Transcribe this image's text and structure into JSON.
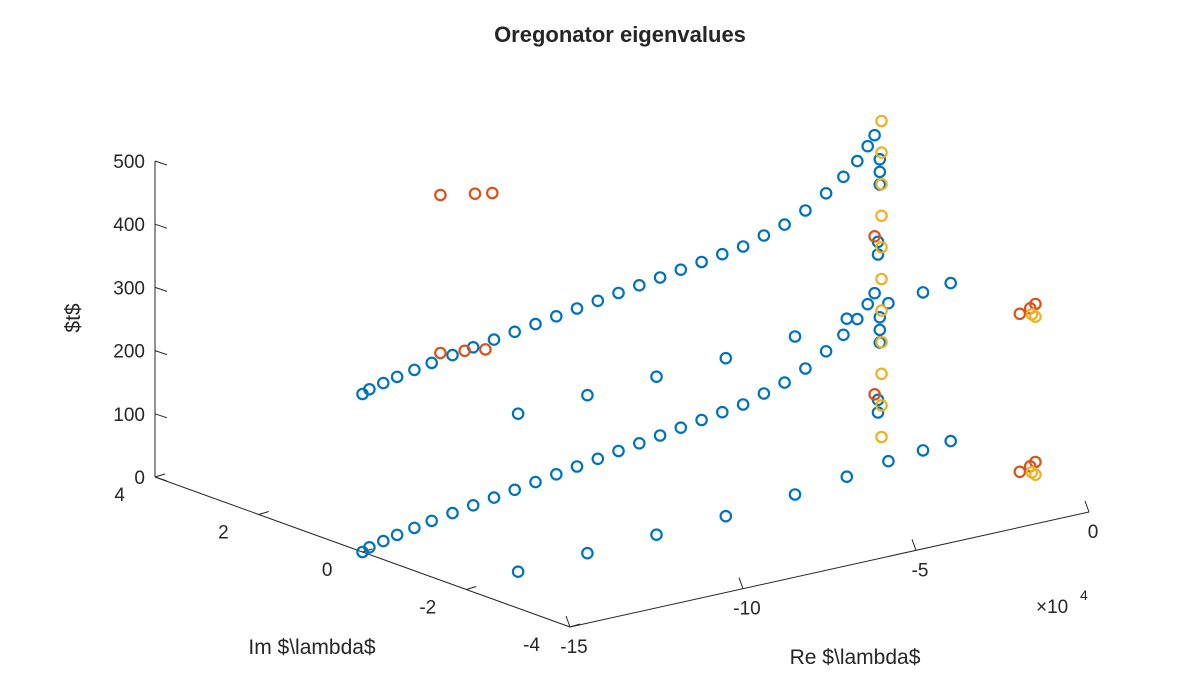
{
  "chart_data": {
    "type": "scatter",
    "title": "Oregonator eigenvalues",
    "xlabel": "Re $\\lambda$",
    "ylabel": "Im $\\lambda$",
    "zlabel": "$t$",
    "xlim": [
      -150000,
      0
    ],
    "ylim": [
      -4,
      4
    ],
    "zlim": [
      0,
      500
    ],
    "x_ticks": [
      "-15",
      "-10",
      "-5",
      "0"
    ],
    "x_tick_values": [
      -150000,
      -100000,
      -50000,
      0
    ],
    "x_exponent_label": "×10",
    "x_exponent_power": "4",
    "y_ticks": [
      "4",
      "2",
      "0",
      "-2",
      "-4"
    ],
    "y_tick_values": [
      4,
      2,
      0,
      -2,
      -4
    ],
    "z_ticks": [
      "0",
      "100",
      "200",
      "300",
      "400",
      "500"
    ],
    "z_tick_values": [
      0,
      100,
      200,
      300,
      400,
      500
    ],
    "grid": false,
    "colors": {
      "series1": "#0072BD",
      "series2": "#D95319",
      "series3": "#EDB120"
    },
    "series": [
      {
        "color": "#0072BD",
        "points": [
          [
            -150000,
            0,
            0
          ],
          [
            -148000,
            0,
            5
          ],
          [
            -144000,
            0,
            10
          ],
          [
            -140000,
            0,
            15
          ],
          [
            -135000,
            0,
            20
          ],
          [
            -130000,
            0,
            25
          ],
          [
            -124000,
            0,
            30
          ],
          [
            -118000,
            0,
            35
          ],
          [
            -112000,
            0,
            40
          ],
          [
            -106000,
            0,
            45
          ],
          [
            -100000,
            0,
            50
          ],
          [
            -94000,
            0,
            55
          ],
          [
            -88000,
            0,
            60
          ],
          [
            -82000,
            0,
            65
          ],
          [
            -76000,
            0,
            70
          ],
          [
            -70000,
            0,
            75
          ],
          [
            -64000,
            0,
            80
          ],
          [
            -58000,
            0,
            85
          ],
          [
            -52000,
            0,
            90
          ],
          [
            -46000,
            0,
            95
          ],
          [
            -40000,
            0,
            100
          ],
          [
            -34000,
            0,
            110
          ],
          [
            -28000,
            0,
            120
          ],
          [
            -22000,
            0,
            135
          ],
          [
            -16000,
            0,
            155
          ],
          [
            -11000,
            0,
            175
          ],
          [
            -7000,
            0,
            195
          ],
          [
            -4000,
            0,
            215
          ],
          [
            -2000,
            0,
            230
          ],
          [
            -150000,
            0,
            250
          ],
          [
            -148000,
            0,
            255
          ],
          [
            -144000,
            0,
            260
          ],
          [
            -140000,
            0,
            265
          ],
          [
            -135000,
            0,
            270
          ],
          [
            -130000,
            0,
            275
          ],
          [
            -124000,
            0,
            280
          ],
          [
            -118000,
            0,
            285
          ],
          [
            -112000,
            0,
            290
          ],
          [
            -106000,
            0,
            295
          ],
          [
            -100000,
            0,
            300
          ],
          [
            -94000,
            0,
            305
          ],
          [
            -88000,
            0,
            310
          ],
          [
            -82000,
            0,
            315
          ],
          [
            -76000,
            0,
            320
          ],
          [
            -70000,
            0,
            325
          ],
          [
            -64000,
            0,
            330
          ],
          [
            -58000,
            0,
            335
          ],
          [
            -52000,
            0,
            340
          ],
          [
            -46000,
            0,
            345
          ],
          [
            -40000,
            0,
            350
          ],
          [
            -34000,
            0,
            360
          ],
          [
            -28000,
            0,
            370
          ],
          [
            -22000,
            0,
            385
          ],
          [
            -16000,
            0,
            405
          ],
          [
            -11000,
            0,
            425
          ],
          [
            -7000,
            0,
            445
          ],
          [
            -4000,
            0,
            465
          ],
          [
            -2000,
            0,
            480
          ],
          [
            -135000,
            -2,
            10
          ],
          [
            -115000,
            -2,
            15
          ],
          [
            -95000,
            -2,
            20
          ],
          [
            -75000,
            -2,
            25
          ],
          [
            -55000,
            -2,
            35
          ],
          [
            -40000,
            -2,
            45
          ],
          [
            -28000,
            -2,
            55
          ],
          [
            -18000,
            -2,
            60
          ],
          [
            -10000,
            -2,
            65
          ],
          [
            -135000,
            -2,
            260
          ],
          [
            -115000,
            -2,
            265
          ],
          [
            -95000,
            -2,
            270
          ],
          [
            -75000,
            -2,
            275
          ],
          [
            -55000,
            -2,
            285
          ],
          [
            -40000,
            -2,
            295
          ],
          [
            -28000,
            -2,
            305
          ],
          [
            -18000,
            -2,
            310
          ],
          [
            -10000,
            -2,
            315
          ],
          [
            -1000,
            0,
            40
          ],
          [
            -1000,
            0,
            60
          ],
          [
            -1000,
            0,
            290
          ],
          [
            -1000,
            0,
            310
          ],
          [
            -500,
            0,
            150
          ],
          [
            -500,
            0,
            170
          ],
          [
            -500,
            0,
            190
          ],
          [
            -500,
            0,
            400
          ],
          [
            -500,
            0,
            420
          ],
          [
            -500,
            0,
            440
          ]
        ]
      },
      {
        "color": "#D95319",
        "points": [
          [
            -75000,
            3.5,
            120
          ],
          [
            -68000,
            3.5,
            115
          ],
          [
            -62000,
            3.5,
            110
          ],
          [
            -75000,
            3.5,
            370
          ],
          [
            -65000,
            3.5,
            360
          ],
          [
            -60000,
            3.5,
            355
          ],
          [
            -5000,
            -3,
            40
          ],
          [
            -2000,
            -3,
            45
          ],
          [
            -500,
            -3,
            50
          ],
          [
            -5000,
            -3,
            290
          ],
          [
            -2000,
            -3,
            295
          ],
          [
            -500,
            -3,
            300
          ],
          [
            -2000,
            0,
            70
          ],
          [
            -2000,
            0,
            320
          ]
        ]
      },
      {
        "color": "#EDB120",
        "points": [
          [
            0,
            0,
            0
          ],
          [
            0,
            0,
            50
          ],
          [
            0,
            0,
            100
          ],
          [
            0,
            0,
            150
          ],
          [
            0,
            0,
            200
          ],
          [
            0,
            0,
            250
          ],
          [
            0,
            0,
            300
          ],
          [
            0,
            0,
            350
          ],
          [
            0,
            0,
            400
          ],
          [
            0,
            0,
            450
          ],
          [
            0,
            0,
            500
          ],
          [
            -500,
            -3,
            30
          ],
          [
            -1500,
            -3,
            35
          ],
          [
            -500,
            -3,
            280
          ],
          [
            -1500,
            -3,
            285
          ]
        ]
      }
    ]
  }
}
